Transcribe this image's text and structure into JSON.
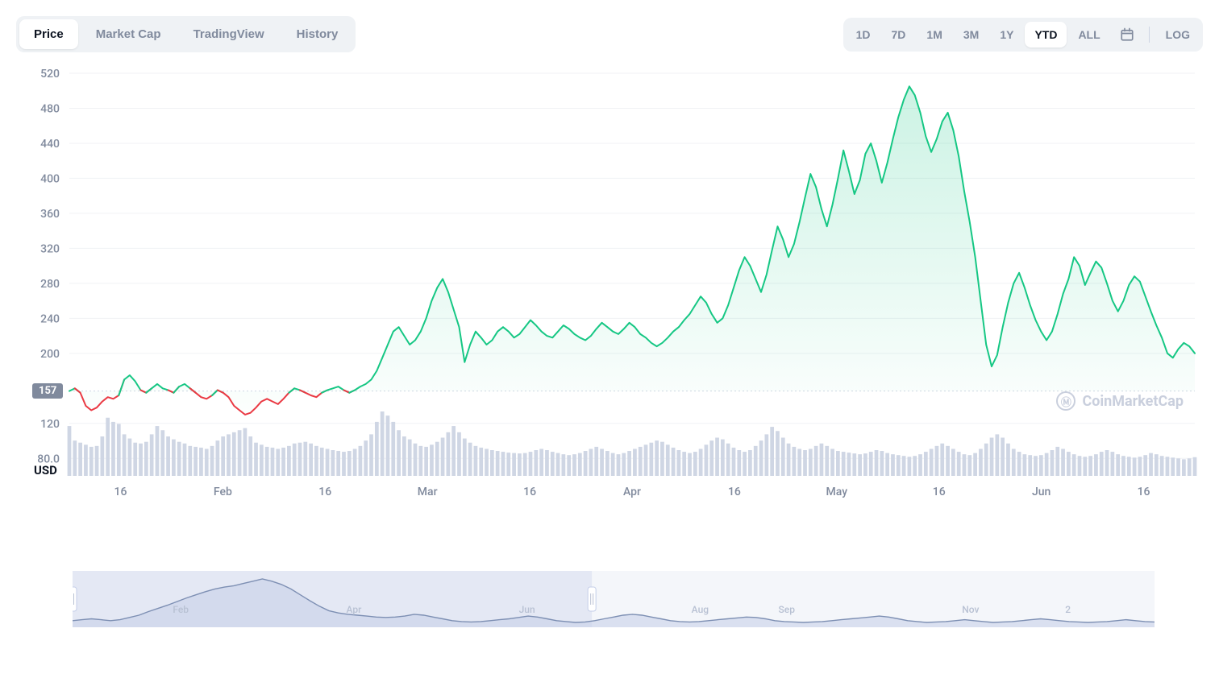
{
  "tabs": {
    "left": [
      "Price",
      "Market Cap",
      "TradingView",
      "History"
    ],
    "left_active": 0,
    "ranges": [
      "1D",
      "7D",
      "1M",
      "3M",
      "1Y",
      "YTD",
      "ALL"
    ],
    "range_active": 5,
    "log_label": "LOG"
  },
  "chart": {
    "type": "line-area",
    "currency": "USD",
    "baseline_value": 157,
    "baseline_label": "157",
    "ylim": [
      60,
      520
    ],
    "yticks": [
      80.0,
      120,
      157,
      200,
      240,
      280,
      320,
      360,
      400,
      440,
      480,
      520
    ],
    "ytick_labels": [
      "80.0",
      "120",
      "157",
      "200",
      "240",
      "280",
      "320",
      "360",
      "400",
      "440",
      "480",
      "520"
    ],
    "xticks_labels": [
      "16",
      "Feb",
      "16",
      "Mar",
      "16",
      "Apr",
      "16",
      "May",
      "16",
      "Jun",
      "16"
    ],
    "colors": {
      "line_up": "#16c784",
      "line_down": "#ea3943",
      "area_up_top": "rgba(22,199,132,0.22)",
      "area_up_bottom": "rgba(22,199,132,0.01)",
      "grid": "#f0f2f5",
      "axis_text": "#808a9d",
      "baseline_dash": "#cfd6e4",
      "volume_bar": "#cfd6e4",
      "background": "#ffffff"
    },
    "line_width": 2,
    "series": [
      157,
      160,
      155,
      140,
      135,
      138,
      145,
      150,
      148,
      152,
      170,
      175,
      168,
      158,
      155,
      160,
      165,
      160,
      158,
      155,
      162,
      165,
      160,
      155,
      150,
      148,
      152,
      158,
      155,
      150,
      140,
      135,
      130,
      132,
      138,
      145,
      148,
      145,
      142,
      148,
      155,
      160,
      158,
      155,
      152,
      150,
      155,
      158,
      160,
      162,
      158,
      155,
      158,
      162,
      165,
      170,
      180,
      195,
      210,
      225,
      230,
      220,
      210,
      215,
      225,
      240,
      260,
      275,
      285,
      270,
      250,
      230,
      190,
      210,
      225,
      218,
      210,
      215,
      225,
      230,
      225,
      218,
      222,
      230,
      238,
      232,
      225,
      220,
      218,
      225,
      232,
      228,
      222,
      218,
      215,
      220,
      228,
      235,
      230,
      225,
      222,
      228,
      235,
      230,
      222,
      218,
      212,
      208,
      212,
      218,
      225,
      230,
      238,
      245,
      255,
      265,
      258,
      245,
      235,
      240,
      255,
      275,
      295,
      310,
      300,
      285,
      270,
      290,
      318,
      345,
      330,
      310,
      325,
      350,
      378,
      405,
      390,
      365,
      345,
      370,
      400,
      432,
      408,
      382,
      398,
      428,
      440,
      420,
      395,
      418,
      445,
      470,
      490,
      505,
      495,
      475,
      448,
      430,
      445,
      465,
      475,
      455,
      425,
      385,
      350,
      310,
      260,
      210,
      185,
      198,
      230,
      258,
      280,
      292,
      275,
      255,
      238,
      225,
      215,
      225,
      245,
      268,
      285,
      310,
      300,
      278,
      292,
      305,
      298,
      280,
      260,
      248,
      260,
      278,
      288,
      282,
      265,
      248,
      232,
      218,
      200,
      195,
      205,
      212,
      208,
      200
    ],
    "volume": [
      120,
      85,
      80,
      75,
      70,
      72,
      95,
      140,
      130,
      125,
      100,
      90,
      80,
      78,
      82,
      100,
      120,
      110,
      95,
      88,
      82,
      78,
      72,
      70,
      68,
      65,
      72,
      85,
      95,
      100,
      105,
      110,
      115,
      95,
      80,
      75,
      70,
      68,
      65,
      68,
      72,
      78,
      80,
      82,
      78,
      72,
      68,
      65,
      62,
      60,
      58,
      60,
      65,
      72,
      85,
      100,
      130,
      155,
      145,
      130,
      110,
      95,
      88,
      78,
      72,
      70,
      75,
      82,
      92,
      105,
      120,
      105,
      90,
      80,
      72,
      68,
      65,
      62,
      60,
      58,
      56,
      55,
      54,
      55,
      58,
      62,
      65,
      62,
      58,
      55,
      52,
      50,
      52,
      55,
      60,
      65,
      70,
      65,
      60,
      55,
      52,
      55,
      60,
      65,
      70,
      75,
      80,
      85,
      82,
      75,
      68,
      62,
      58,
      55,
      58,
      65,
      75,
      85,
      92,
      88,
      78,
      68,
      62,
      58,
      62,
      72,
      85,
      100,
      118,
      108,
      92,
      78,
      70,
      65,
      62,
      65,
      72,
      78,
      72,
      65,
      60,
      58,
      56,
      54,
      52,
      54,
      58,
      62,
      60,
      55,
      52,
      50,
      48,
      46,
      48,
      52,
      58,
      65,
      72,
      78,
      72,
      65,
      58,
      52,
      50,
      55,
      65,
      78,
      92,
      100,
      92,
      78,
      65,
      58,
      52,
      50,
      48,
      50,
      55,
      62,
      70,
      65,
      58,
      52,
      48,
      46,
      48,
      52,
      58,
      62,
      58,
      52,
      48,
      46,
      44,
      46,
      50,
      55,
      52,
      48,
      46,
      44,
      42,
      40,
      42,
      45
    ]
  },
  "navigator": {
    "months": [
      "Feb",
      "Apr",
      "Jun",
      "Aug",
      "Sep",
      "Nov",
      "2"
    ],
    "month_positions": [
      0.1,
      0.26,
      0.42,
      0.58,
      0.66,
      0.83,
      0.92
    ],
    "selection": [
      0.0,
      0.48
    ],
    "colors": {
      "line": "#7d8fb3",
      "fill": "#c4cee8",
      "bg": "#f4f6fa",
      "selection": "#d8dff0",
      "handle": "#ffffff",
      "handle_border": "#c4cee8",
      "text": "#b8c1d3"
    },
    "series": [
      48,
      50,
      52,
      50,
      48,
      50,
      55,
      60,
      68,
      75,
      82,
      90,
      98,
      105,
      112,
      118,
      122,
      125,
      130,
      135,
      140,
      135,
      128,
      118,
      105,
      92,
      80,
      70,
      65,
      62,
      60,
      58,
      56,
      55,
      56,
      58,
      62,
      60,
      56,
      52,
      48,
      46,
      45,
      46,
      48,
      50,
      52,
      55,
      58,
      56,
      52,
      48,
      46,
      44,
      45,
      48,
      52,
      56,
      60,
      62,
      60,
      56,
      52,
      48,
      46,
      45,
      46,
      48,
      50,
      52,
      54,
      56,
      55,
      52,
      48,
      46,
      45,
      44,
      45,
      46,
      48,
      50,
      52,
      54,
      56,
      58,
      56,
      52,
      48,
      46,
      44,
      45,
      46,
      48,
      50,
      48,
      46,
      44,
      45,
      46,
      48,
      50,
      52,
      50,
      48,
      46,
      45,
      44,
      45,
      46,
      48,
      50,
      48,
      46,
      45
    ]
  },
  "watermark": "CoinMarketCap"
}
